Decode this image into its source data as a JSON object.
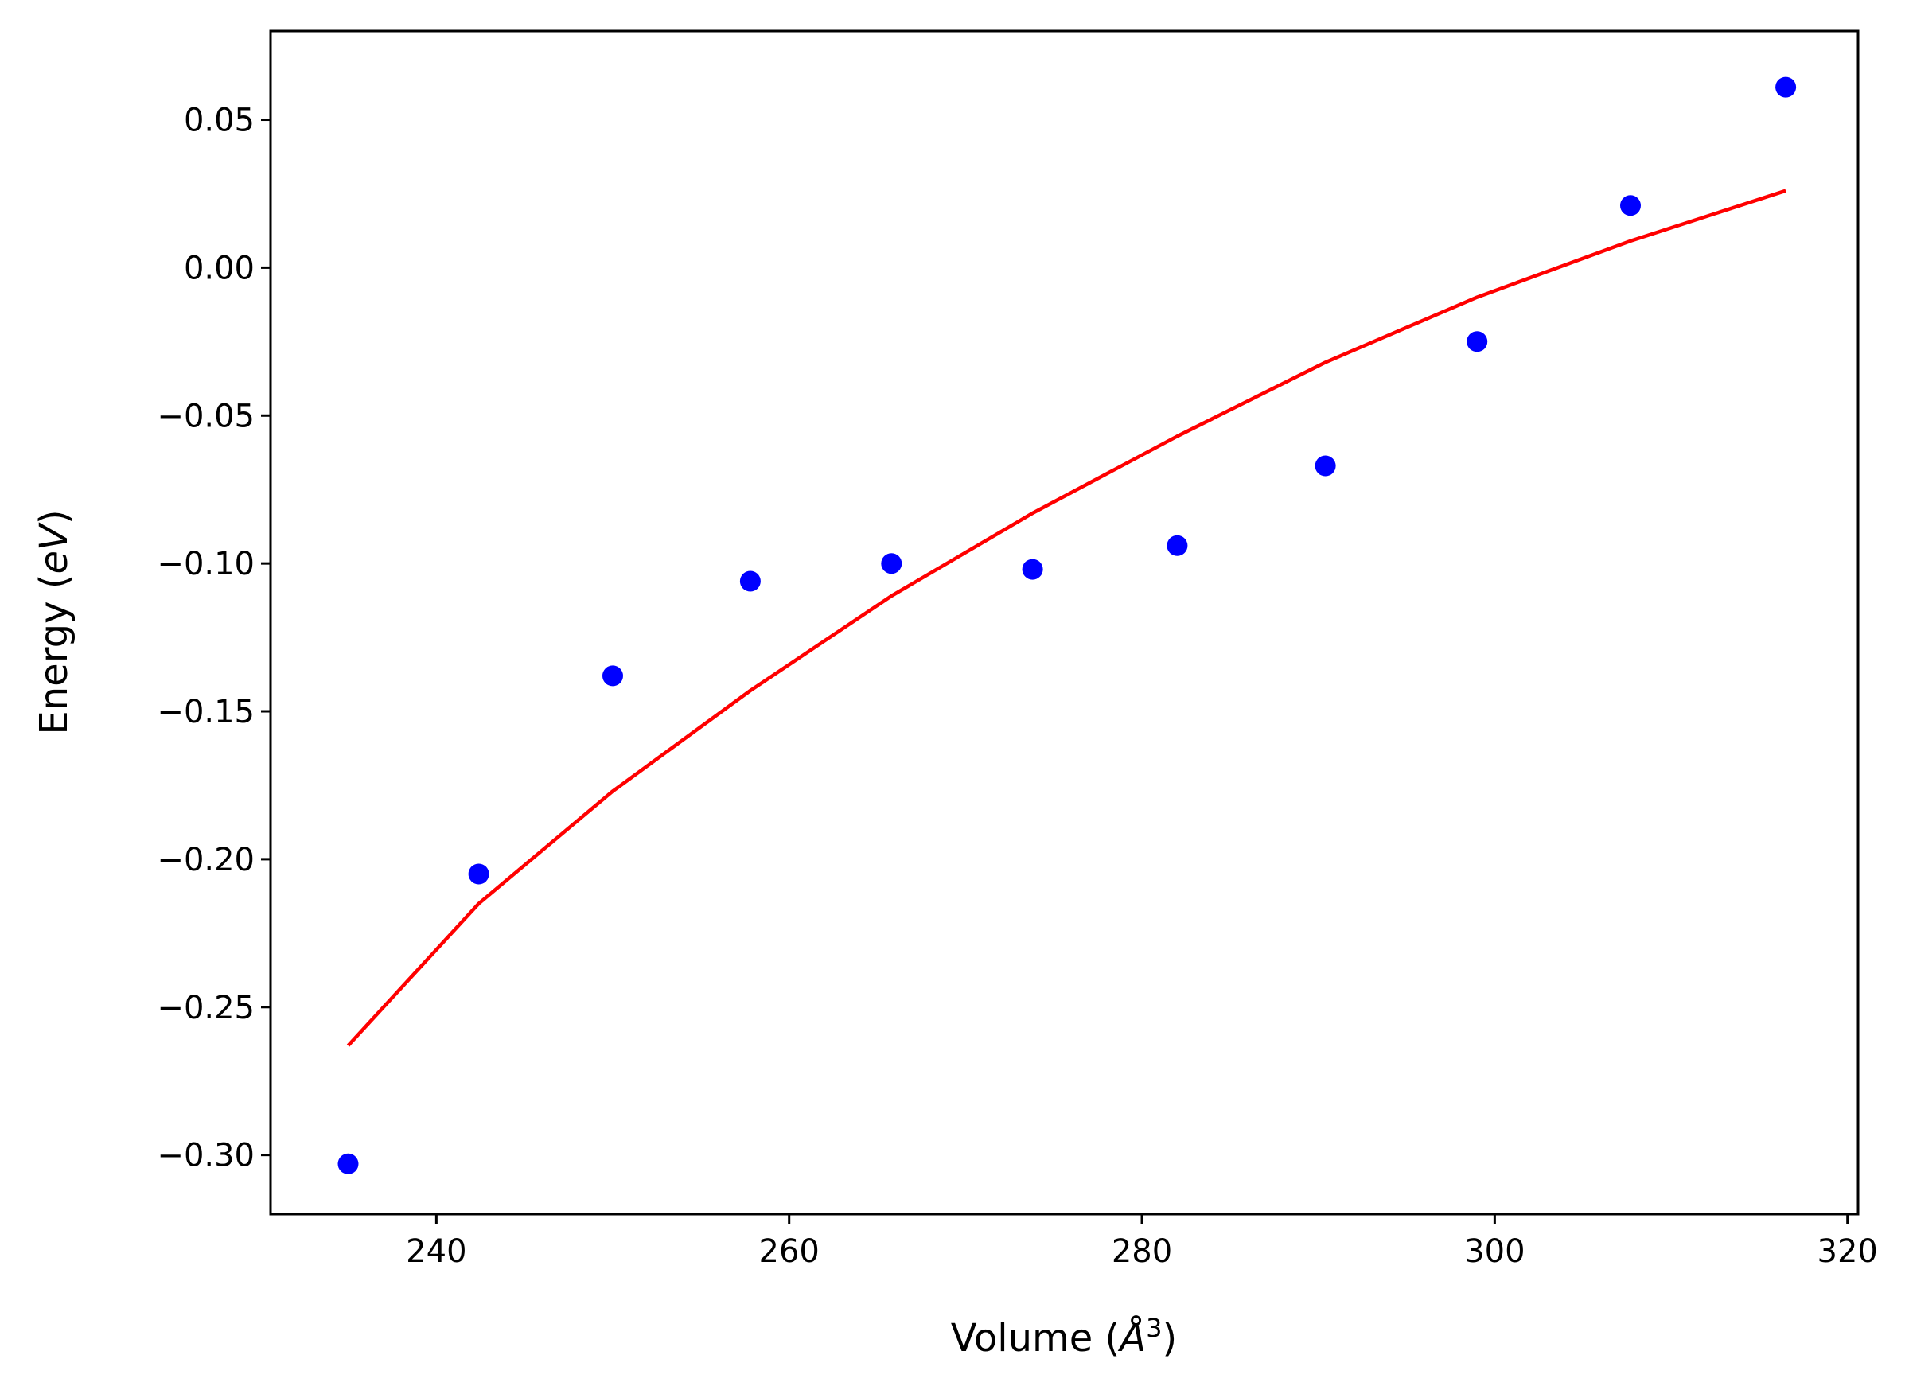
{
  "chart_data": {
    "type": "scatter",
    "title": "",
    "xlabel": "Volume (Å³)",
    "ylabel": "Energy (eV)",
    "xlabel_parts": {
      "prefix": "Volume (",
      "unit": "Å",
      "sup": "3",
      "suffix": ")"
    },
    "ylabel_parts": {
      "prefix": "Energy (",
      "unit": "eV",
      "suffix": ")"
    },
    "xlim": [
      230.6,
      320.6
    ],
    "ylim": [
      -0.32,
      0.08
    ],
    "x_ticks": [
      240,
      260,
      280,
      300,
      320
    ],
    "x_tick_labels": [
      "240",
      "260",
      "280",
      "300",
      "320"
    ],
    "y_ticks": [
      0.05,
      0.0,
      -0.05,
      -0.1,
      -0.15,
      -0.2,
      -0.25,
      -0.3
    ],
    "y_tick_labels": [
      "0.05",
      "0.00",
      "−0.05",
      "−0.10",
      "−0.15",
      "−0.20",
      "−0.25",
      "−0.30"
    ],
    "grid": false,
    "series": [
      {
        "kind": "scatter",
        "color": "#0000ff",
        "x": [
          235.0,
          242.4,
          250.0,
          257.8,
          265.8,
          273.8,
          282.0,
          290.4,
          299.0,
          307.7,
          316.5
        ],
        "y": [
          -0.303,
          -0.205,
          -0.138,
          -0.106,
          -0.1,
          -0.102,
          -0.094,
          -0.067,
          -0.025,
          0.021,
          0.061
        ]
      },
      {
        "kind": "line",
        "color": "#ff0000",
        "x": [
          235.0,
          242.4,
          250.0,
          257.8,
          265.8,
          273.8,
          282.0,
          290.4,
          299.0,
          307.7,
          316.5
        ],
        "y": [
          -0.263,
          -0.215,
          -0.177,
          -0.143,
          -0.111,
          -0.083,
          -0.057,
          -0.032,
          -0.01,
          0.009,
          0.026
        ]
      }
    ]
  }
}
